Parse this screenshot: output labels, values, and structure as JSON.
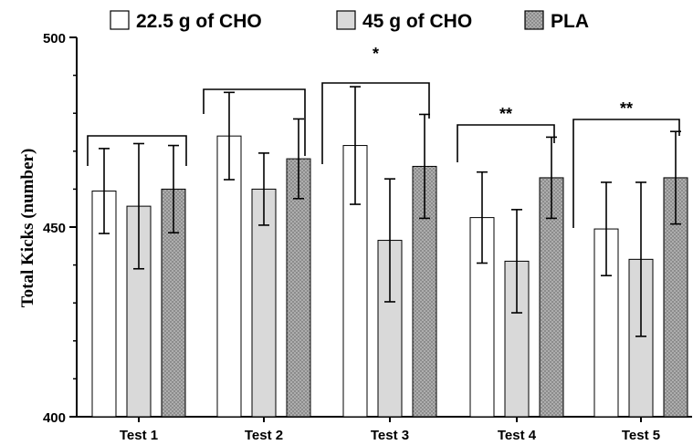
{
  "chart_data": {
    "type": "bar",
    "title": "",
    "xlabel": "",
    "ylabel": "Total Kicks (number)",
    "ylim": [
      400,
      500
    ],
    "yticks": [
      "400",
      "450",
      "500"
    ],
    "categories": [
      "Test 1",
      "Test 2",
      "Test 3",
      "Test 4",
      "Test 5"
    ],
    "legend_position": "top",
    "grid": false,
    "series": [
      {
        "name": "22.5 g of CHO",
        "fill": "#ffffff",
        "pattern": "solid",
        "values": [
          459.5,
          474,
          471.5,
          452.5,
          449.5
        ],
        "error": [
          11.2,
          11.5,
          15.5,
          12.0,
          12.3
        ]
      },
      {
        "name": "45 g of CHO",
        "fill": "#d9d9d9",
        "pattern": "solid",
        "values": [
          455.5,
          460,
          446.5,
          441,
          441.5
        ],
        "error": [
          16.5,
          9.5,
          16.2,
          13.6,
          20.3
        ]
      },
      {
        "name": "PLA",
        "fill": "#8c8c8c",
        "pattern": "dotted",
        "values": [
          460,
          468,
          466,
          463,
          463
        ],
        "error": [
          11.5,
          10.5,
          13.7,
          10.7,
          12.2
        ]
      }
    ],
    "significance": [
      {
        "category": "Test 1",
        "label": ""
      },
      {
        "category": "Test 2",
        "label": ""
      },
      {
        "category": "Test 3",
        "label": "*"
      },
      {
        "category": "Test 4",
        "label": "**"
      },
      {
        "category": "Test 5",
        "label": "**"
      }
    ]
  }
}
